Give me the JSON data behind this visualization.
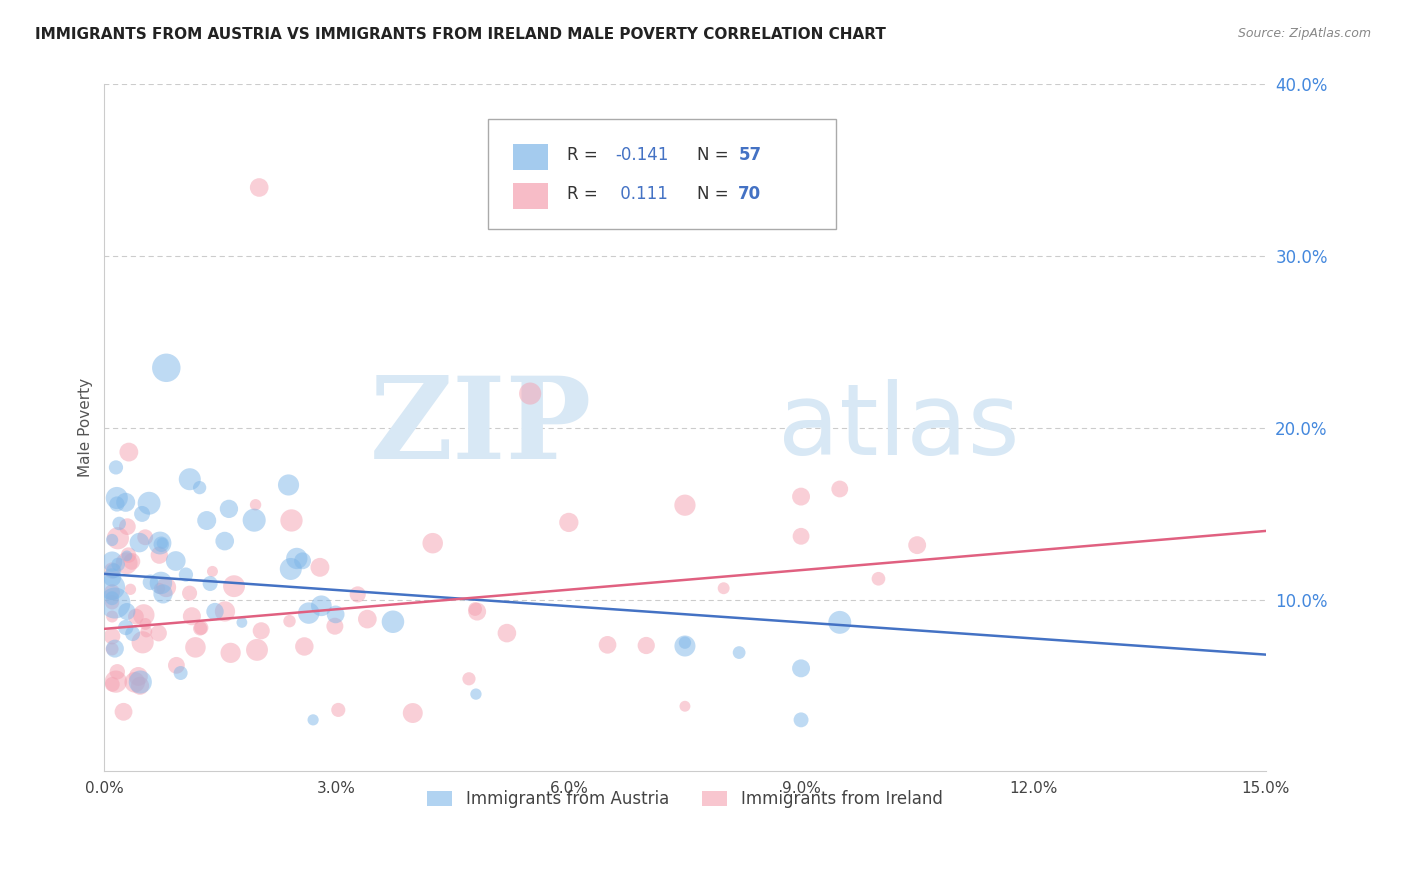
{
  "title": "IMMIGRANTS FROM AUSTRIA VS IMMIGRANTS FROM IRELAND MALE POVERTY CORRELATION CHART",
  "source": "Source: ZipAtlas.com",
  "ylabel": "Male Poverty",
  "xlim": [
    0.0,
    0.15
  ],
  "ylim": [
    0.0,
    0.4
  ],
  "xticks": [
    0.0,
    0.03,
    0.06,
    0.09,
    0.12,
    0.15
  ],
  "xticklabels": [
    "0.0%",
    "3.0%",
    "6.0%",
    "9.0%",
    "12.0%",
    "15.0%"
  ],
  "yticks_right": [
    0.1,
    0.2,
    0.3,
    0.4
  ],
  "yticklabels_right": [
    "10.0%",
    "20.0%",
    "30.0%",
    "40.0%"
  ],
  "austria_color": "#7EB6E8",
  "ireland_color": "#F4A0B0",
  "austria_line_color": "#4472C4",
  "ireland_line_color": "#E06080",
  "austria_label": "Immigrants from Austria",
  "ireland_label": "Immigrants from Ireland",
  "watermark_zip": "ZIP",
  "watermark_atlas": "atlas",
  "watermark_color": "#D8E8F5",
  "background_color": "#ffffff",
  "grid_color": "#cccccc",
  "right_axis_color": "#4488DD",
  "title_color": "#222222",
  "source_color": "#888888",
  "ylabel_color": "#555555",
  "legend_text_black": "#333333",
  "legend_text_blue": "#4472C4"
}
